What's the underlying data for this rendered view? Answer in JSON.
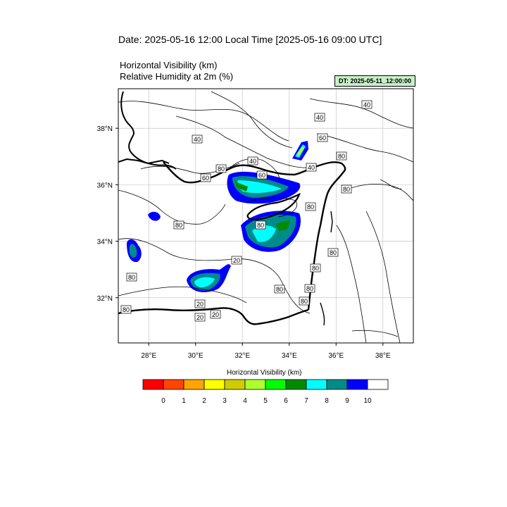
{
  "header": {
    "title": "Date: 2025-05-16  12:00 Local Time [2025-05-16  09:00 UTC]",
    "subtitle_1": "Horizontal Visibility   (km)",
    "subtitle_2": "Relative Humidity at 2m   (%)",
    "dt_badge": "DT: 2025-05-11_12:00:00",
    "dt_badge_color": "#c8f0c8"
  },
  "map": {
    "lon_range": [
      26.7,
      39.3
    ],
    "lat_range": [
      30.4,
      39.4
    ],
    "x_ticks": [
      "28°E",
      "30°E",
      "32°E",
      "34°E",
      "36°E",
      "38°E"
    ],
    "y_ticks": [
      "38°N",
      "36°N",
      "34°N",
      "32°N"
    ],
    "grid": true,
    "contour_labels": [
      "40",
      "40",
      "60",
      "40",
      "40",
      "80",
      "60",
      "60",
      "80",
      "40",
      "80",
      "80",
      "80",
      "80",
      "20",
      "80",
      "80",
      "80",
      "80",
      "80",
      "80",
      "80",
      "20",
      "20",
      "20"
    ]
  },
  "colorbar": {
    "title": "Horizontal Visibility  (km)",
    "labels": [
      "0",
      "1",
      "2",
      "3",
      "4",
      "5",
      "6",
      "7",
      "8",
      "9",
      "10"
    ],
    "colors": [
      "#ff0000",
      "#ff4500",
      "#ffa500",
      "#ffff00",
      "#cdcd00",
      "#adff2f",
      "#00ff00",
      "#008b00",
      "#00ffff",
      "#008b8b",
      "#0000ff",
      "#ffffff"
    ]
  }
}
